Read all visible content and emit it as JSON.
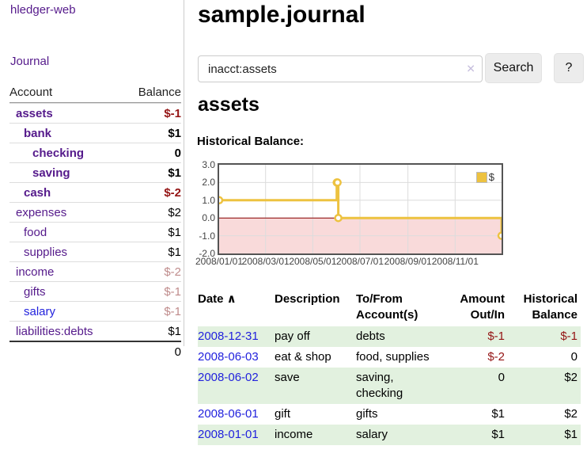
{
  "app": {
    "brand": "hledger-web",
    "nav_journal": "Journal"
  },
  "sidebar": {
    "account_header": "Account",
    "balance_header": "Balance",
    "accounts": [
      {
        "name": "assets",
        "depth": 1,
        "bold": true,
        "name_color": "purple",
        "balance": "$-1",
        "balance_class": "neg bold"
      },
      {
        "name": "bank",
        "depth": 2,
        "bold": true,
        "name_color": "purple",
        "balance": "$1",
        "balance_class": "bold"
      },
      {
        "name": "checking",
        "depth": 3,
        "bold": true,
        "name_color": "purple",
        "balance": "0",
        "balance_class": "bold"
      },
      {
        "name": "saving",
        "depth": 3,
        "bold": true,
        "name_color": "purple",
        "balance": "$1",
        "balance_class": "bold"
      },
      {
        "name": "cash",
        "depth": 2,
        "bold": true,
        "name_color": "purple",
        "balance": "$-2",
        "balance_class": "neg bold"
      },
      {
        "name": "expenses",
        "depth": 1,
        "bold": false,
        "name_color": "purple",
        "balance": "$2",
        "balance_class": ""
      },
      {
        "name": "food",
        "depth": 2,
        "bold": false,
        "name_color": "purple",
        "balance": "$1",
        "balance_class": ""
      },
      {
        "name": "supplies",
        "depth": 2,
        "bold": false,
        "name_color": "purple",
        "balance": "$1",
        "balance_class": ""
      },
      {
        "name": "income",
        "depth": 1,
        "bold": false,
        "name_color": "purple",
        "balance": "$-2",
        "balance_class": "neg-dim"
      },
      {
        "name": "gifts",
        "depth": 2,
        "bold": false,
        "name_color": "purple",
        "balance": "$-1",
        "balance_class": "neg-dim"
      },
      {
        "name": "salary",
        "depth": 2,
        "bold": false,
        "name_color": "blue",
        "balance": "$-1",
        "balance_class": "neg-dim"
      },
      {
        "name": "liabilities:debts",
        "depth": 1,
        "bold": false,
        "name_color": "purple",
        "balance": "$1",
        "balance_class": ""
      }
    ],
    "total": "0"
  },
  "header": {
    "title": "sample.journal"
  },
  "search": {
    "value": "inacct:assets",
    "clear_icon": "✕",
    "button_label": "Search",
    "help_label": "?"
  },
  "main": {
    "account_heading": "assets",
    "chart_label": "Historical Balance:"
  },
  "chart_data": {
    "type": "line",
    "step": true,
    "series": [
      {
        "name": "$",
        "color": "#edc240",
        "points": [
          [
            "2008-01-01",
            1
          ],
          [
            "2008-06-01",
            2
          ],
          [
            "2008-06-02",
            2
          ],
          [
            "2008-06-03",
            0
          ],
          [
            "2008-12-31",
            -1
          ]
        ]
      }
    ],
    "xlim": [
      "2008-01-01",
      "2008-12-31"
    ],
    "ylim": [
      -2,
      3
    ],
    "y_ticks": [
      {
        "v": 3,
        "label": "3.0"
      },
      {
        "v": 2,
        "label": "2.0"
      },
      {
        "v": 1,
        "label": "1.0"
      },
      {
        "v": 0,
        "label": "0.0"
      },
      {
        "v": -1,
        "label": "-1.0"
      },
      {
        "v": -2,
        "label": "-2.0"
      }
    ],
    "x_ticks": [
      {
        "date": "2008-01-01",
        "label": "2008/01/01"
      },
      {
        "date": "2008-03-01",
        "label": "2008/03/01"
      },
      {
        "date": "2008-05-01",
        "label": "2008/05/01"
      },
      {
        "date": "2008-07-01",
        "label": "2008/07/01"
      },
      {
        "date": "2008-09-01",
        "label": "2008/09/01"
      },
      {
        "date": "2008-11-01",
        "label": "2008/11/01"
      }
    ],
    "grid": true,
    "legend": {
      "label": "$",
      "position": "top-right"
    },
    "negative_region": {
      "from": 0,
      "to": -2,
      "fill": "#f9dada"
    },
    "zero_line_color": "#8b0000"
  },
  "register": {
    "headers": [
      {
        "lines": [
          "Date"
        ],
        "sort_indicator": "∧",
        "align": "left"
      },
      {
        "lines": [
          "Description"
        ],
        "align": "left"
      },
      {
        "lines": [
          "To/From",
          "Account(s)"
        ],
        "align": "left"
      },
      {
        "lines": [
          "Amount",
          "Out/In"
        ],
        "align": "right"
      },
      {
        "lines": [
          "Historical",
          "Balance"
        ],
        "align": "right"
      }
    ],
    "rows": [
      {
        "date": "2008-12-31",
        "description": "pay off",
        "accounts": [
          "debts"
        ],
        "amount": "$-1",
        "amount_neg": true,
        "balance": "$-1",
        "balance_neg": true,
        "shaded": true
      },
      {
        "date": "2008-06-03",
        "description": "eat & shop",
        "accounts": [
          "food, supplies"
        ],
        "amount": "$-2",
        "amount_neg": true,
        "balance": "0",
        "balance_neg": false,
        "shaded": false
      },
      {
        "date": "2008-06-02",
        "description": "save",
        "accounts": [
          "saving,",
          "checking"
        ],
        "amount": "0",
        "amount_neg": false,
        "balance": "$2",
        "balance_neg": false,
        "shaded": true
      },
      {
        "date": "2008-06-01",
        "description": "gift",
        "accounts": [
          "gifts"
        ],
        "amount": "$1",
        "amount_neg": false,
        "balance": "$2",
        "balance_neg": false,
        "shaded": false
      },
      {
        "date": "2008-01-01",
        "description": "income",
        "accounts": [
          "salary"
        ],
        "amount": "$1",
        "amount_neg": false,
        "balance": "$1",
        "balance_neg": false,
        "shaded": true
      }
    ]
  },
  "colors": {
    "link_visited": "#551a8b",
    "link_unvisited": "#2222dd",
    "negative": "#941414",
    "negative_dim": "#bf8b8b",
    "row_stripe": "#e2f1df",
    "chart_line": "#edc240",
    "chart_border": "#545454"
  }
}
